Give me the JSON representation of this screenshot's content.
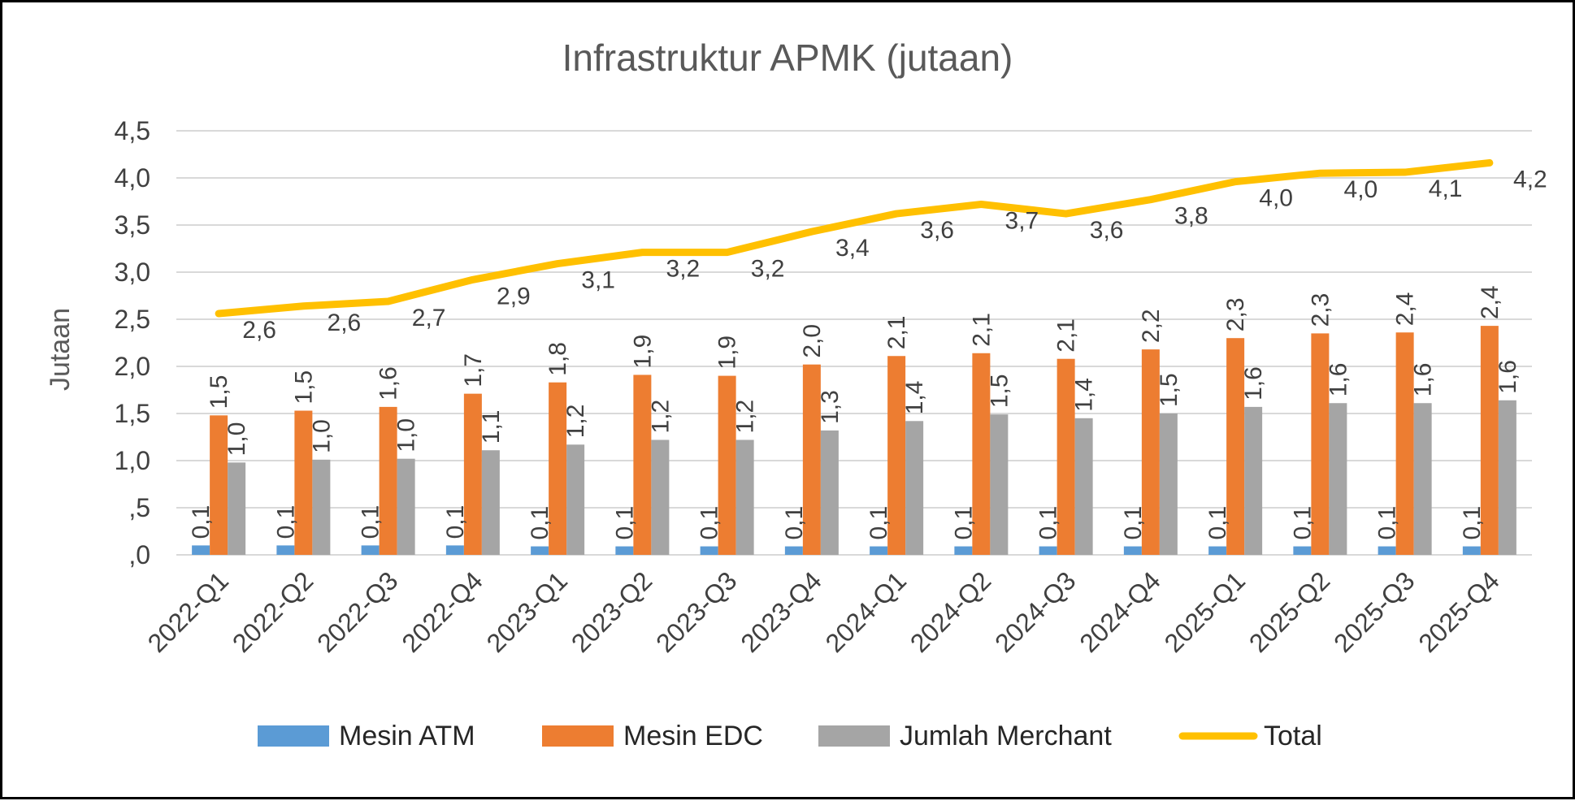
{
  "chart_data": {
    "type": "bar",
    "title": "Infrastruktur APMK (jutaan)",
    "ylabel": "Jutaan",
    "xlabel": "",
    "ylim": [
      0,
      4.5
    ],
    "yticks": [
      ",0",
      ",5",
      "1,0",
      "1,5",
      "2,0",
      "2,5",
      "3,0",
      "3,5",
      "4,0",
      "4,5"
    ],
    "categories": [
      "2022-Q1",
      "2022-Q2",
      "2022-Q3",
      "2022-Q4",
      "2023-Q1",
      "2023-Q2",
      "2023-Q3",
      "2023-Q4",
      "2024-Q1",
      "2024-Q2",
      "2024-Q3",
      "2024-Q4",
      "2025-Q1",
      "2025-Q2",
      "2025-Q3",
      "2025-Q4"
    ],
    "series": [
      {
        "name": "Mesin ATM",
        "kind": "bar",
        "color": "#5b9bd5",
        "values": [
          0.1,
          0.1,
          0.1,
          0.1,
          0.09,
          0.09,
          0.09,
          0.09,
          0.09,
          0.09,
          0.09,
          0.09,
          0.09,
          0.09,
          0.09,
          0.09
        ],
        "labels": [
          "0,1",
          "0,1",
          "0,1",
          "0,1",
          "0,1",
          "0,1",
          "0,1",
          "0,1",
          "0,1",
          "0,1",
          "0,1",
          "0,1",
          "0,1",
          "0,1",
          "0,1",
          "0,1"
        ]
      },
      {
        "name": "Mesin EDC",
        "kind": "bar",
        "color": "#ed7d31",
        "values": [
          1.48,
          1.53,
          1.57,
          1.71,
          1.83,
          1.91,
          1.9,
          2.02,
          2.11,
          2.14,
          2.08,
          2.18,
          2.3,
          2.35,
          2.36,
          2.43
        ],
        "labels": [
          "1,5",
          "1,5",
          "1,6",
          "1,7",
          "1,8",
          "1,9",
          "1,9",
          "2,0",
          "2,1",
          "2,1",
          "2,1",
          "2,2",
          "2,3",
          "2,3",
          "2,4",
          "2,4"
        ]
      },
      {
        "name": "Jumlah Merchant",
        "kind": "bar",
        "color": "#a5a5a5",
        "values": [
          0.98,
          1.01,
          1.02,
          1.11,
          1.17,
          1.22,
          1.22,
          1.32,
          1.42,
          1.49,
          1.45,
          1.5,
          1.57,
          1.61,
          1.61,
          1.64
        ],
        "labels": [
          "1,0",
          "1,0",
          "1,0",
          "1,1",
          "1,2",
          "1,2",
          "1,2",
          "1,3",
          "1,4",
          "1,5",
          "1,4",
          "1,5",
          "1,6",
          "1,6",
          "1,6",
          "1,6"
        ]
      },
      {
        "name": "Total",
        "kind": "line",
        "color": "#ffc000",
        "values": [
          2.56,
          2.64,
          2.69,
          2.92,
          3.09,
          3.21,
          3.21,
          3.43,
          3.62,
          3.72,
          3.62,
          3.77,
          3.96,
          4.05,
          4.06,
          4.16
        ],
        "labels": [
          "2,6",
          "2,6",
          "2,7",
          "2,9",
          "3,1",
          "3,2",
          "3,2",
          "3,4",
          "3,6",
          "3,7",
          "3,6",
          "3,8",
          "4,0",
          "4,0",
          "4,1",
          "4,2"
        ]
      }
    ],
    "legend_position": "bottom",
    "grid": true
  }
}
